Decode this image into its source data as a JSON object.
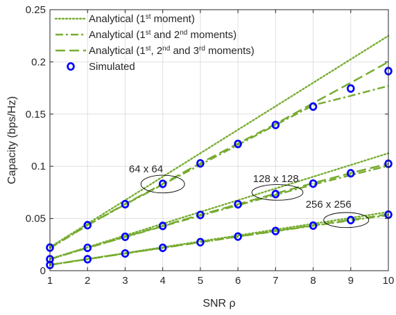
{
  "chart_data": {
    "type": "line",
    "title": "",
    "xlabel": "SNR ρ",
    "ylabel": "Capacity (bps/Hz)",
    "xlim": [
      1,
      10
    ],
    "ylim": [
      0,
      0.25
    ],
    "x_ticks": [
      1,
      2,
      3,
      4,
      5,
      6,
      7,
      8,
      9,
      10
    ],
    "y_ticks": [
      "0",
      "0.05",
      "0.1",
      "0.15",
      "0.2",
      "0.25"
    ],
    "grid": true,
    "legend_position": "top-left",
    "x": [
      1,
      2,
      3,
      4,
      5,
      6,
      7,
      8,
      9,
      10
    ],
    "colors": {
      "analytical": "#77ac30",
      "simulated": "#0000ff"
    },
    "legend": [
      {
        "key": "m1",
        "parts": [
          [
            "Analytical (1",
            ""
          ],
          [
            "st",
            "sup"
          ],
          [
            " moment)",
            ""
          ]
        ]
      },
      {
        "key": "m12",
        "parts": [
          [
            "Analytical (1",
            ""
          ],
          [
            "st",
            "sup"
          ],
          [
            " and 2",
            ""
          ],
          [
            "nd",
            "sup"
          ],
          [
            " moments)",
            ""
          ]
        ]
      },
      {
        "key": "m123",
        "parts": [
          [
            "Analytical (1",
            ""
          ],
          [
            "st",
            "sup"
          ],
          [
            ", 2",
            ""
          ],
          [
            "nd",
            "sup"
          ],
          [
            " and 3",
            ""
          ],
          [
            "rd",
            "sup"
          ],
          [
            " moments)",
            ""
          ]
        ]
      },
      {
        "key": "sim",
        "parts": [
          [
            "Simulated",
            ""
          ]
        ]
      }
    ],
    "groups": [
      {
        "label": "64 x 64",
        "annotation_x": 4,
        "annotation_y": 0.083,
        "annotation_rx": 0.58,
        "annotation_ry": 0.0085,
        "label_x": 3.1,
        "label_y": 0.094,
        "series": [
          {
            "name": "Analytical (1st moment)",
            "style": "dotted",
            "values": [
              0.0225,
              0.045,
              0.0675,
              0.09,
              0.1125,
              0.135,
              0.1575,
              0.18,
              0.2025,
              0.225
            ]
          },
          {
            "name": "Analytical (1st and 2nd moments)",
            "style": "dash-dot",
            "values": [
              0.0215,
              0.0435,
              0.0635,
              0.0825,
              0.1015,
              0.1205,
              0.1395,
              0.1585,
              0.1675,
              0.177
            ]
          },
          {
            "name": "Analytical (1st, 2nd and 3rd moments)",
            "style": "dashed",
            "values": [
              0.022,
              0.0437,
              0.0639,
              0.0832,
              0.103,
              0.1218,
              0.1405,
              0.1605,
              0.18,
              0.2
            ]
          },
          {
            "name": "Simulated",
            "style": "marker",
            "values": [
              0.0221,
              0.0436,
              0.0637,
              0.0832,
              0.1028,
              0.1214,
              0.1396,
              0.1572,
              0.1745,
              0.1912
            ]
          }
        ]
      },
      {
        "label": "128 x 128",
        "annotation_x": 7.05,
        "annotation_y": 0.075,
        "annotation_rx": 0.68,
        "annotation_ry": 0.0075,
        "label_x": 6.4,
        "label_y": 0.085,
        "series": [
          {
            "name": "Analytical (1st moment)",
            "style": "dotted",
            "values": [
              0.01125,
              0.0225,
              0.03375,
              0.045,
              0.05625,
              0.0675,
              0.07875,
              0.09,
              0.10125,
              0.1125
            ]
          },
          {
            "name": "Analytical (1st and 2nd moments)",
            "style": "dash-dot",
            "values": [
              0.011,
              0.0218,
              0.0322,
              0.0425,
              0.0528,
              0.0627,
              0.0726,
              0.0825,
              0.0915,
              0.1005
            ]
          },
          {
            "name": "Analytical (1st, 2nd and 3rd moments)",
            "style": "dashed",
            "values": [
              0.011,
              0.022,
              0.0325,
              0.043,
              0.0535,
              0.0637,
              0.0739,
              0.0839,
              0.0935,
              0.1025
            ]
          },
          {
            "name": "Simulated",
            "style": "marker",
            "values": [
              0.011,
              0.0219,
              0.0325,
              0.0429,
              0.0534,
              0.0636,
              0.0734,
              0.0834,
              0.0933,
              0.1024
            ]
          }
        ]
      },
      {
        "label": "256 x 256",
        "annotation_x": 8.88,
        "annotation_y": 0.0485,
        "annotation_rx": 0.6,
        "annotation_ry": 0.0072,
        "label_x": 7.8,
        "label_y": 0.0605,
        "series": [
          {
            "name": "Analytical (1st moment)",
            "style": "dotted",
            "values": [
              0.005625,
              0.01125,
              0.016875,
              0.0225,
              0.028125,
              0.03375,
              0.039375,
              0.045,
              0.050625,
              0.05625
            ]
          },
          {
            "name": "Analytical (1st and 2nd moments)",
            "style": "dash-dot",
            "values": [
              0.0055,
              0.011,
              0.0165,
              0.0218,
              0.0272,
              0.0326,
              0.0378,
              0.043,
              0.0482,
              0.0532
            ]
          },
          {
            "name": "Analytical (1st, 2nd and 3rd moments)",
            "style": "dashed",
            "values": [
              0.0056,
              0.0111,
              0.0166,
              0.022,
              0.0274,
              0.0328,
              0.0381,
              0.0434,
              0.0487,
              0.054
            ]
          },
          {
            "name": "Simulated",
            "style": "marker",
            "values": [
              0.0055,
              0.011,
              0.0165,
              0.0219,
              0.0273,
              0.0327,
              0.038,
              0.0432,
              0.0485,
              0.0537
            ]
          }
        ]
      }
    ]
  }
}
